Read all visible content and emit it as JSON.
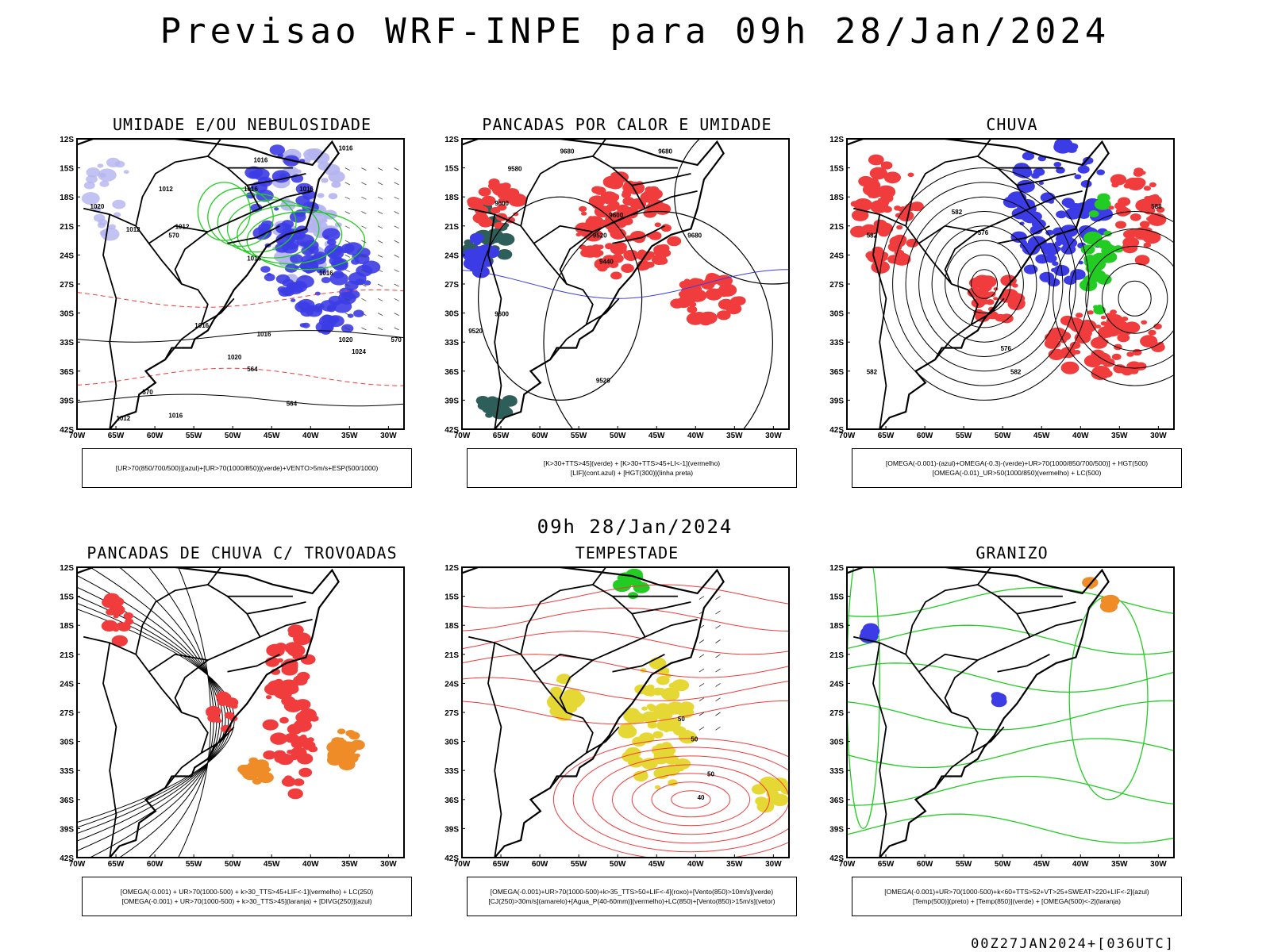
{
  "title": "Previsao WRF-INPE  para 09h 28/Jan/2024",
  "mid_title": "09h 28/Jan/2024",
  "footer": "00Z27JAN2024+[036UTC]",
  "axes": {
    "lat_labels": [
      "12S",
      "15S",
      "18S",
      "21S",
      "24S",
      "27S",
      "30S",
      "33S",
      "36S",
      "39S",
      "42S"
    ],
    "lon_labels": [
      "70W",
      "65W",
      "60W",
      "55W",
      "50W",
      "45W",
      "40W",
      "35W",
      "30W"
    ]
  },
  "colors": {
    "red": "#f03c3c",
    "blue": "#3c3ce6",
    "green": "#22cc22",
    "lightblue": "#b4b4f0",
    "yellow": "#e6d834",
    "darkgreen": "#2e5e5a",
    "orange": "#f08c28"
  },
  "panels": [
    {
      "title": "UMIDADE E/OU NEBULOSIDADE",
      "legend": [
        "[UR>70(850/700/500)](azul)+[UR>70(1000/850)](verde)+VENTO>5m/s+ESP(500/1000)"
      ],
      "labels": [
        "1016",
        "1016",
        "1016",
        "1012",
        "1020",
        "1012",
        "1012",
        "1016",
        "1016",
        "1016",
        "1016",
        "1020",
        "1024",
        "1020",
        "1012",
        "1016",
        "570",
        "570",
        "564",
        "564",
        "570",
        "1016"
      ]
    },
    {
      "title": "PANCADAS POR CALOR E UMIDADE",
      "legend": [
        "[K>30+TTS>45](verde)  +  [K>30+TTS>45+LI<-1](vermelho)",
        "[LIF](cont.azul)  +  [HGT(300)](linha preta)"
      ],
      "labels": [
        "9680",
        "9680",
        "9580",
        "9600",
        "9600",
        "9520",
        "9680",
        "9440",
        "9600",
        "9520",
        "9520"
      ]
    },
    {
      "title": "CHUVA",
      "legend": [
        "[OMEGA(-0.001)-(azul)+OMEGA(-0.3)-(verde)+UR>70(1000/850/700/500)]  +  HGT(500)",
        "[OMEGA(-0.01)_UR>50(1000/850)(vermelho)  +  LC(500)"
      ],
      "labels": [
        "582",
        "576",
        "588",
        "582",
        "576",
        "582",
        "582"
      ]
    },
    {
      "title": "PANCADAS DE CHUVA C/ TROVOADAS",
      "legend": [
        "[OMEGA(-0.001)  +  UR>70(1000-500)  +  k>30_TTS>45+LIF<-1](vermelho)  +  LC(250)",
        "[OMEGA(-0.001)  +  UR>70(1000-500)  +  k>30_TTS>45](laranja)  +  [DIVG(250)](azul)"
      ],
      "labels": []
    },
    {
      "title": "TEMPESTADE",
      "legend": [
        "[OMEGA(-0.001)+UR>70(1000-500)+k>35_TTS>50+LIF<-4](roxo)+[Vento(850)>10m/s](verde)",
        "[CJ(250)>30m/s](amarelo)+[Agua_P(40-60mm)](vermelho)+LC(850)+[Vento(850)>15m/s](vetor)"
      ],
      "labels": [
        "50",
        "50",
        "50",
        "40"
      ]
    },
    {
      "title": "GRANIZO",
      "legend": [
        "[OMEGA(-0.001)+UR>70(1000-500)+k<60+TTS>52+VT>25+SWEAT>220+LIF<-2](azul)",
        "[Temp(500)](preto)  +  [Temp(850)](verde)  +  [OMEGA(500)<-2](laranja)"
      ],
      "labels": []
    }
  ]
}
